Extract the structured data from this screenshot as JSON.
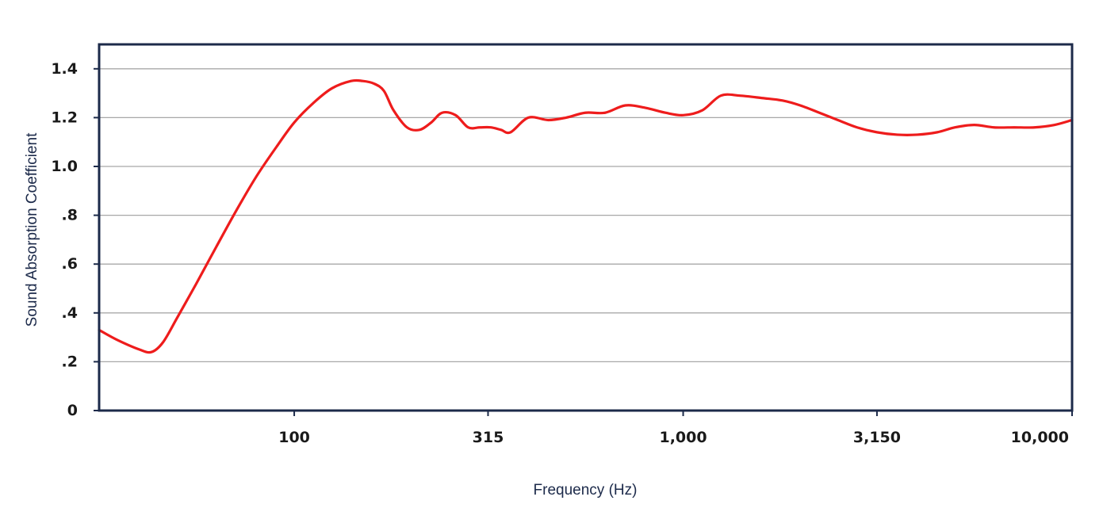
{
  "chart_data": {
    "type": "line",
    "title": "",
    "xlabel": "Frequency (Hz)",
    "ylabel": "Sound Absorption Coefficient",
    "x_scale": "log",
    "xlim": [
      31.5,
      10000
    ],
    "ylim": [
      0,
      1.5
    ],
    "grid": true,
    "x_ticks": [
      {
        "value": 100,
        "label": "100"
      },
      {
        "value": 315,
        "label": "315"
      },
      {
        "value": 1000,
        "label": "1,000"
      },
      {
        "value": 3150,
        "label": "3,150"
      },
      {
        "value": 10000,
        "label": "10,000"
      }
    ],
    "y_ticks": [
      {
        "value": 0,
        "label": "0"
      },
      {
        "value": 0.2,
        "label": ".2"
      },
      {
        "value": 0.4,
        "label": ".4"
      },
      {
        "value": 0.6,
        "label": ".6"
      },
      {
        "value": 0.8,
        "label": ".8"
      },
      {
        "value": 1.0,
        "label": "1.0"
      },
      {
        "value": 1.2,
        "label": "1.2"
      },
      {
        "value": 1.4,
        "label": "1.4"
      }
    ],
    "series": [
      {
        "color": "#ee1c1c",
        "x": [
          31.5,
          35,
          40,
          43,
          46,
          50,
          56,
          63,
          71,
          80,
          90,
          100,
          112,
          125,
          140,
          150,
          160,
          170,
          180,
          195,
          210,
          225,
          240,
          260,
          280,
          300,
          320,
          340,
          360,
          400,
          450,
          500,
          560,
          630,
          710,
          800,
          900,
          1000,
          1120,
          1250,
          1400,
          1600,
          1800,
          2000,
          2240,
          2500,
          2800,
          3150,
          3550,
          4000,
          4500,
          5000,
          5600,
          6300,
          7100,
          8000,
          9000,
          10000
        ],
        "y": [
          0.33,
          0.29,
          0.25,
          0.24,
          0.28,
          0.38,
          0.52,
          0.67,
          0.82,
          0.96,
          1.08,
          1.18,
          1.26,
          1.32,
          1.35,
          1.35,
          1.34,
          1.31,
          1.23,
          1.16,
          1.15,
          1.18,
          1.22,
          1.21,
          1.16,
          1.16,
          1.16,
          1.15,
          1.14,
          1.2,
          1.19,
          1.2,
          1.22,
          1.22,
          1.25,
          1.24,
          1.22,
          1.21,
          1.23,
          1.29,
          1.29,
          1.28,
          1.27,
          1.25,
          1.22,
          1.19,
          1.16,
          1.14,
          1.13,
          1.13,
          1.14,
          1.16,
          1.17,
          1.16,
          1.16,
          1.16,
          1.17,
          1.19
        ]
      }
    ]
  }
}
